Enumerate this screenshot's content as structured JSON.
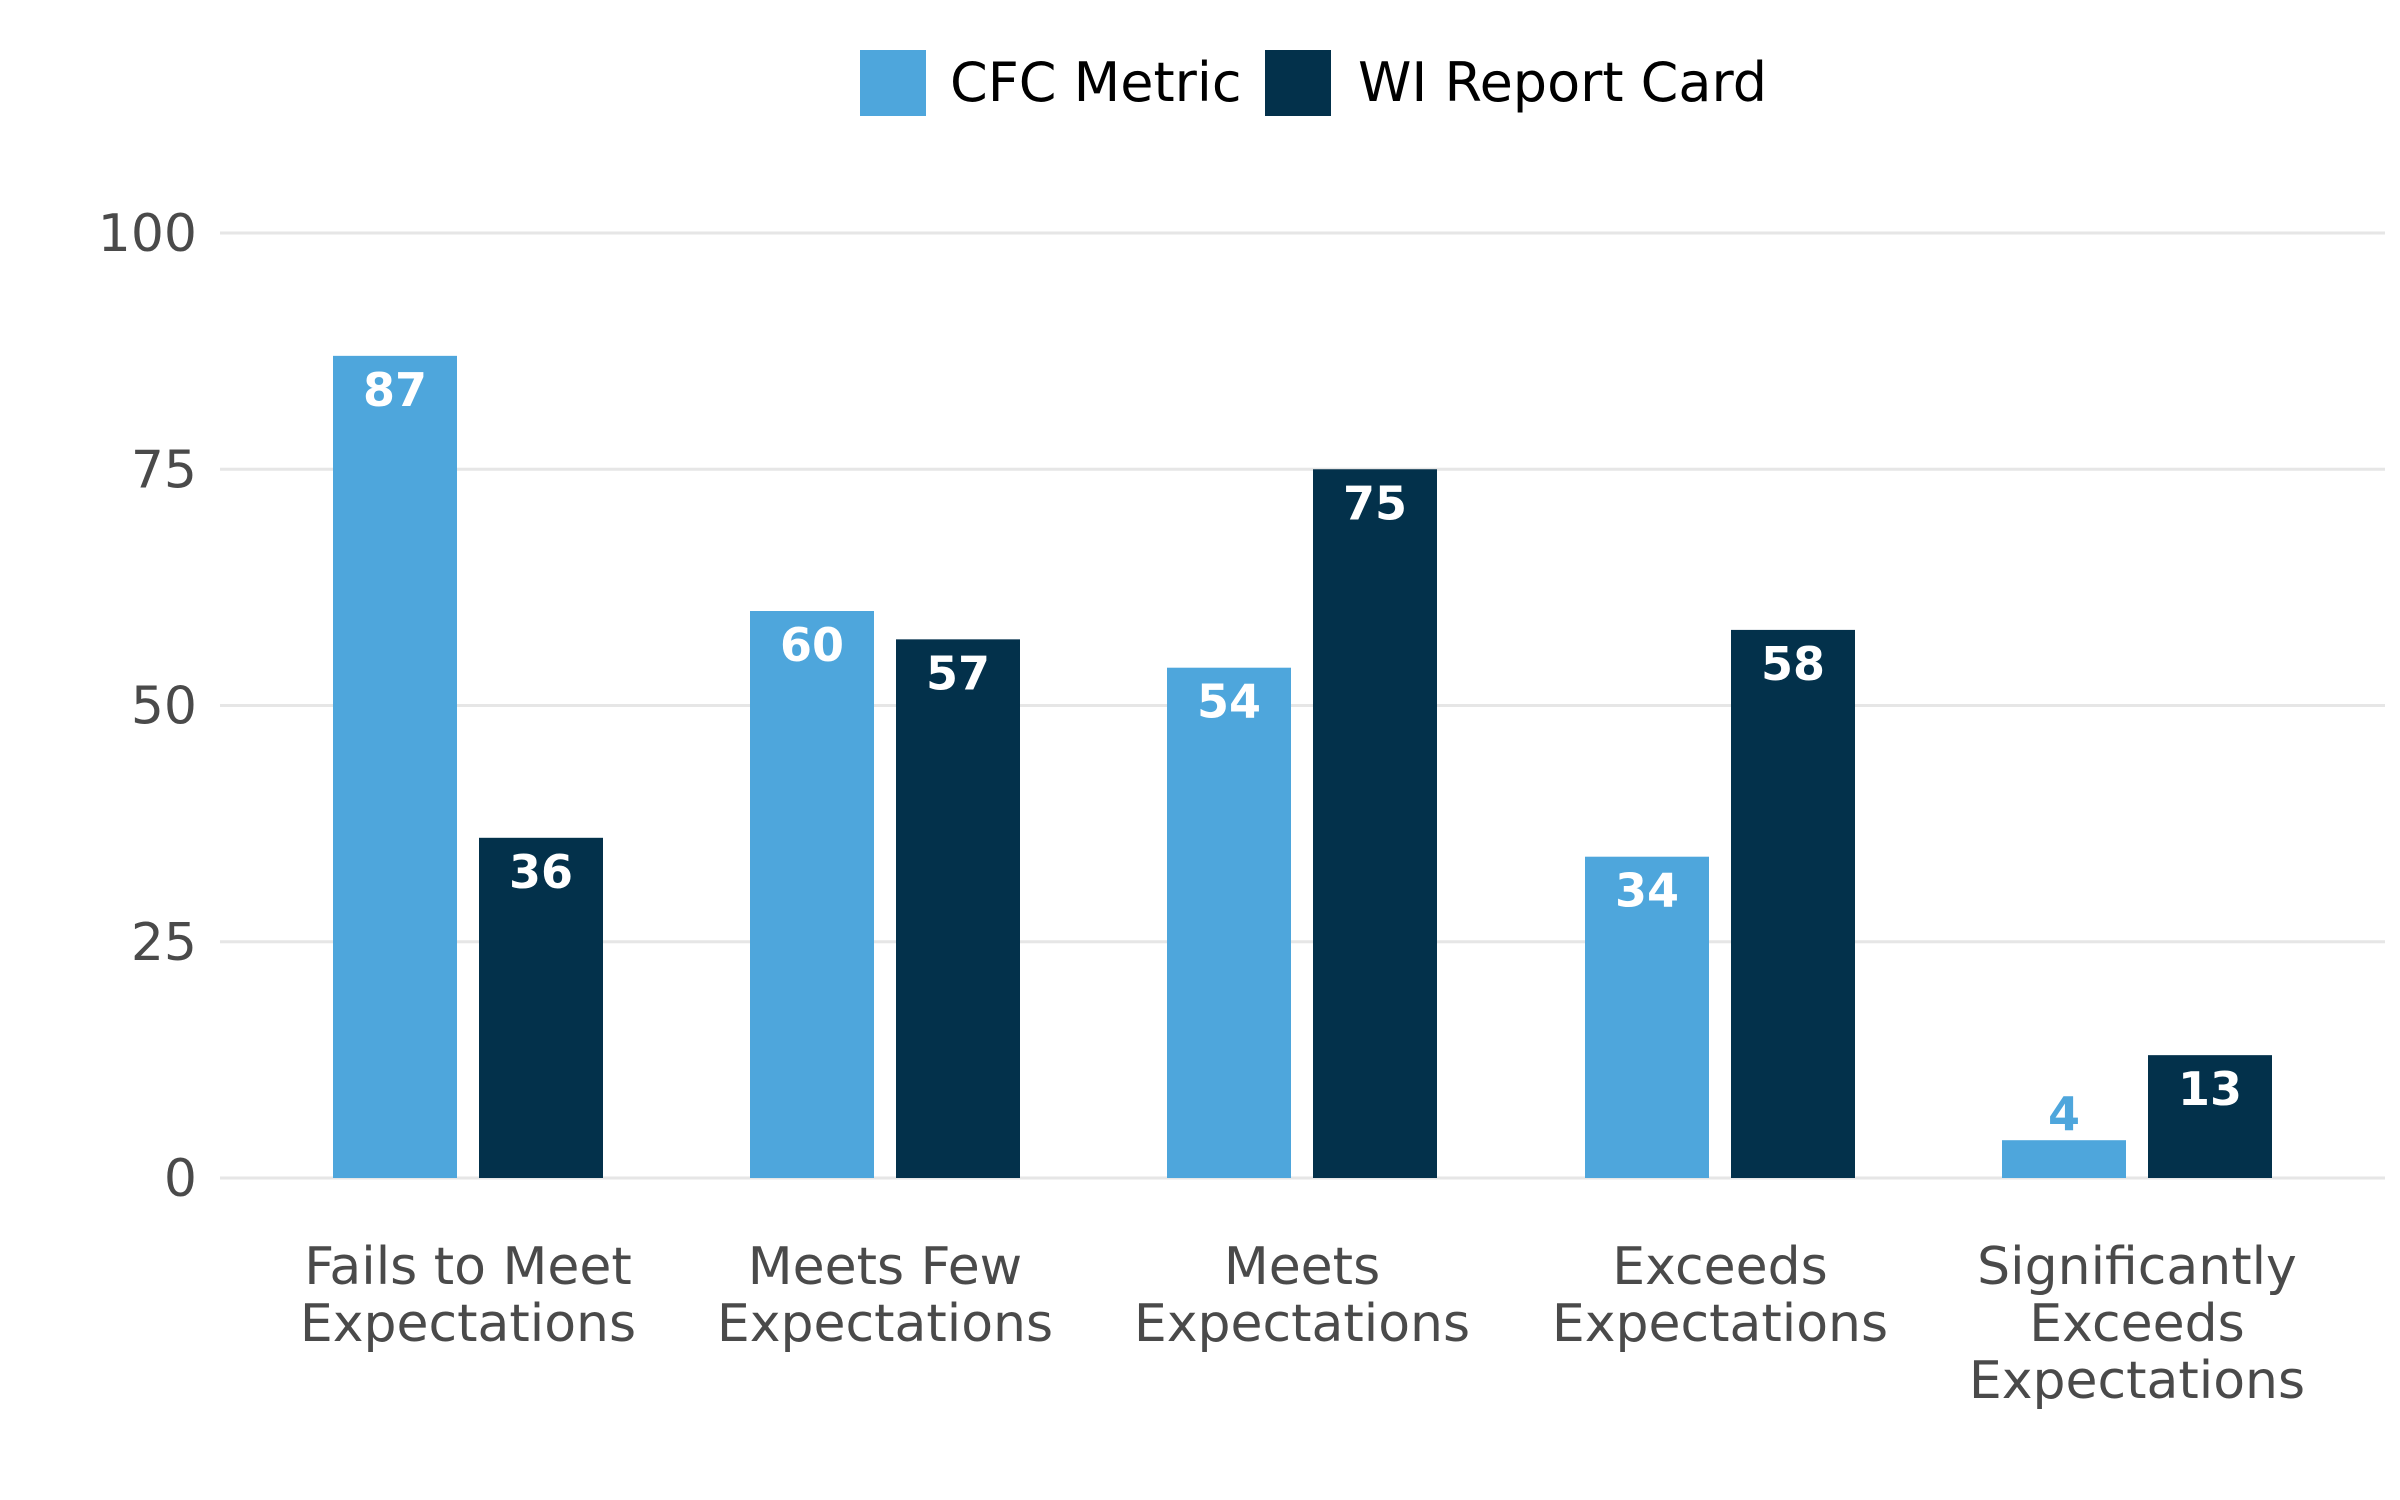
{
  "chart_data": {
    "type": "bar",
    "title": "",
    "xlabel": "",
    "ylabel": "",
    "ylim": [
      0,
      100
    ],
    "yticks": [
      0,
      25,
      50,
      75,
      100
    ],
    "grid": true,
    "legend_position": "top-center",
    "categories": [
      [
        "Fails to Meet",
        "Expectations"
      ],
      [
        "Meets Few",
        "Expectations"
      ],
      [
        "Meets",
        "Expectations"
      ],
      [
        "Exceeds",
        "Expectations"
      ],
      [
        "Significantly",
        "Exceeds",
        "Expectations"
      ]
    ],
    "series": [
      {
        "name": "CFC Metric",
        "color": "#4ea6dc",
        "values": [
          87,
          60,
          54,
          34,
          4
        ]
      },
      {
        "name": "WI Report Card",
        "color": "#03314b",
        "values": [
          36,
          57,
          75,
          58,
          13
        ]
      }
    ]
  }
}
